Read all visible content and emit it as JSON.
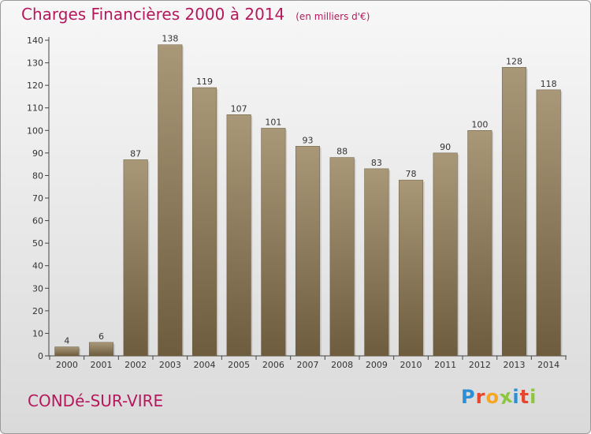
{
  "title": "Charges Financières 2000 à 2014",
  "subtitle": "(en milliers d'€)",
  "commune": "CONDé-SUR-VIRE",
  "logo": {
    "letters": [
      "P",
      "r",
      "o",
      "x",
      "i",
      "t",
      "i"
    ],
    "colors": [
      "#2a8fd4",
      "#e8462a",
      "#f5a623",
      "#8cc63f",
      "#2a8fd4",
      "#e8462a",
      "#8cc63f"
    ]
  },
  "colors": {
    "title": "#b5185c",
    "bar_top": "#a89878",
    "bar_bottom": "#6e5c3e"
  },
  "chart_data": {
    "type": "bar",
    "categories": [
      "2000",
      "2001",
      "2002",
      "2003",
      "2004",
      "2005",
      "2006",
      "2007",
      "2008",
      "2009",
      "2010",
      "2011",
      "2012",
      "2013",
      "2014"
    ],
    "values": [
      4,
      6,
      87,
      138,
      119,
      107,
      101,
      93,
      88,
      83,
      78,
      90,
      100,
      128,
      118
    ],
    "value_labels": [
      "4",
      "6",
      "87",
      "138",
      "119",
      "107",
      "101",
      "93",
      "88",
      "83",
      "78",
      "90",
      "100",
      "128",
      "118"
    ],
    "ylim": [
      0,
      140
    ],
    "yticks": [
      0,
      10,
      20,
      30,
      40,
      50,
      60,
      70,
      80,
      90,
      100,
      110,
      120,
      130,
      140
    ],
    "ytick_labels": [
      "0",
      "10",
      "20",
      "30",
      "40",
      "50",
      "60",
      "70",
      "80",
      "90",
      "100",
      "110",
      "120",
      "130",
      "140"
    ],
    "grid": false
  }
}
